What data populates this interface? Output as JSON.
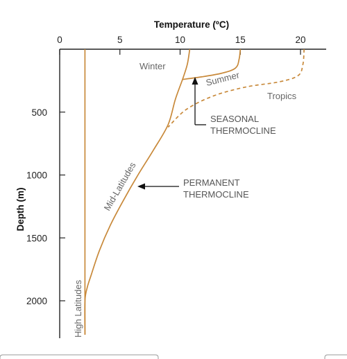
{
  "chart_data": {
    "type": "line",
    "title": "",
    "xlabel": "Temperature (ºC)",
    "ylabel": "Depth (m)",
    "x_axis_position": "top",
    "y_inverted": true,
    "xlim": [
      0,
      22
    ],
    "ylim": [
      0,
      2270
    ],
    "x_ticks": [
      0,
      5,
      10,
      15,
      20
    ],
    "y_ticks": [
      500,
      1000,
      1500,
      2000
    ],
    "grid": false,
    "legend": "none",
    "colors": {
      "curve": "#c8893a",
      "text": "#666666",
      "annotation_arrow": "#111111"
    },
    "series": [
      {
        "name": "High Latitudes",
        "style": "solid",
        "x": [
          2.1,
          2.1
        ],
        "y": [
          0,
          2270
        ]
      },
      {
        "name": "Mid-Latitudes",
        "style": "solid",
        "x": [
          10.8,
          10.6,
          10.2,
          9.6,
          9.0,
          7.8,
          6.5,
          5.3,
          4.2,
          3.3,
          2.6,
          2.3,
          2.1,
          2.1
        ],
        "y": [
          0,
          120,
          240,
          400,
          600,
          800,
          1000,
          1200,
          1400,
          1600,
          1800,
          1890,
          2000,
          2270
        ]
      },
      {
        "name": "Summer",
        "style": "solid",
        "x": [
          15.0,
          14.9,
          14.6,
          13.5,
          11.8,
          10.2
        ],
        "y": [
          0,
          80,
          150,
          190,
          220,
          240
        ]
      },
      {
        "name": "Tropics",
        "style": "dashed",
        "x": [
          20.3,
          20.2,
          19.8,
          18.2,
          15.5,
          12.8,
          10.5,
          9.0
        ],
        "y": [
          0,
          120,
          210,
          260,
          300,
          370,
          480,
          620
        ]
      }
    ],
    "curve_labels": {
      "winter": "Winter",
      "summer": "Summer",
      "tropics": "Tropics",
      "mid_latitudes": "Mid-Latitudes",
      "high_latitudes": "High Latitudes"
    },
    "annotations": [
      {
        "id": "seasonal",
        "lines": [
          "SEASONAL",
          "THERMOCLINE"
        ],
        "arrow": "up",
        "points_to": {
          "x": 11.2,
          "y": 250
        }
      },
      {
        "id": "permanent",
        "lines": [
          "PERMANENT",
          "THERMOCLINE"
        ],
        "arrow": "left",
        "points_to": {
          "x": 6.3,
          "y": 1090
        }
      }
    ]
  }
}
